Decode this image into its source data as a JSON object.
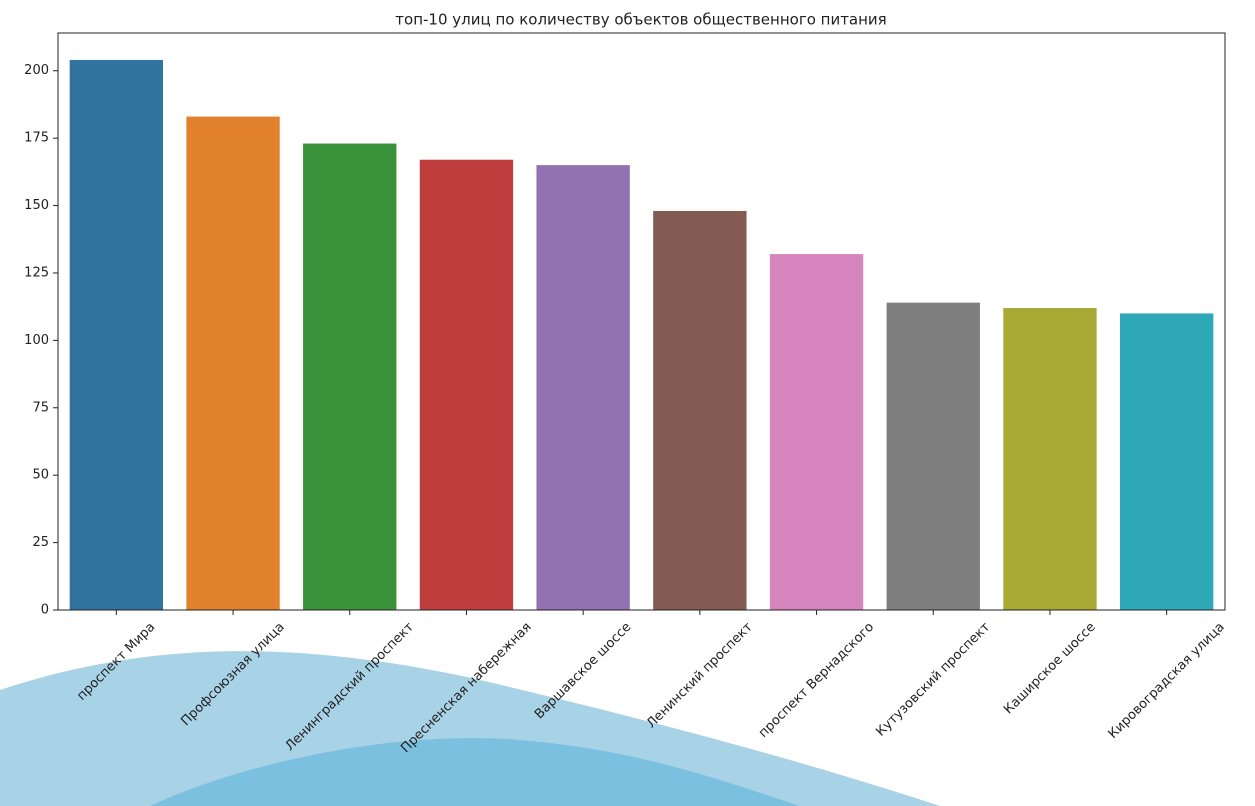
{
  "chart_data": {
    "type": "bar",
    "title": "топ-10 улиц по количеству объектов общественного питания",
    "categories": [
      "проспект Мира",
      "Профсоюзная улица",
      "Ленинградский проспект",
      "Пресненская набережная",
      "Варшавское шоссе",
      "Ленинский проспект",
      "проспект Вернадского",
      "Кутузовский проспект",
      "Каширское шоссе",
      "Кировоградская улица"
    ],
    "values": [
      204,
      183,
      173,
      167,
      165,
      148,
      132,
      114,
      112,
      110
    ],
    "colors": [
      "#3274a1",
      "#e1812c",
      "#3a923a",
      "#c03d3e",
      "#9372b2",
      "#845b53",
      "#d684bd",
      "#7f7f7f",
      "#a9aa35",
      "#2ea8b6"
    ],
    "ylim": [
      0,
      214
    ],
    "yticks": [
      0,
      25,
      50,
      75,
      100,
      125,
      150,
      175,
      200
    ]
  }
}
